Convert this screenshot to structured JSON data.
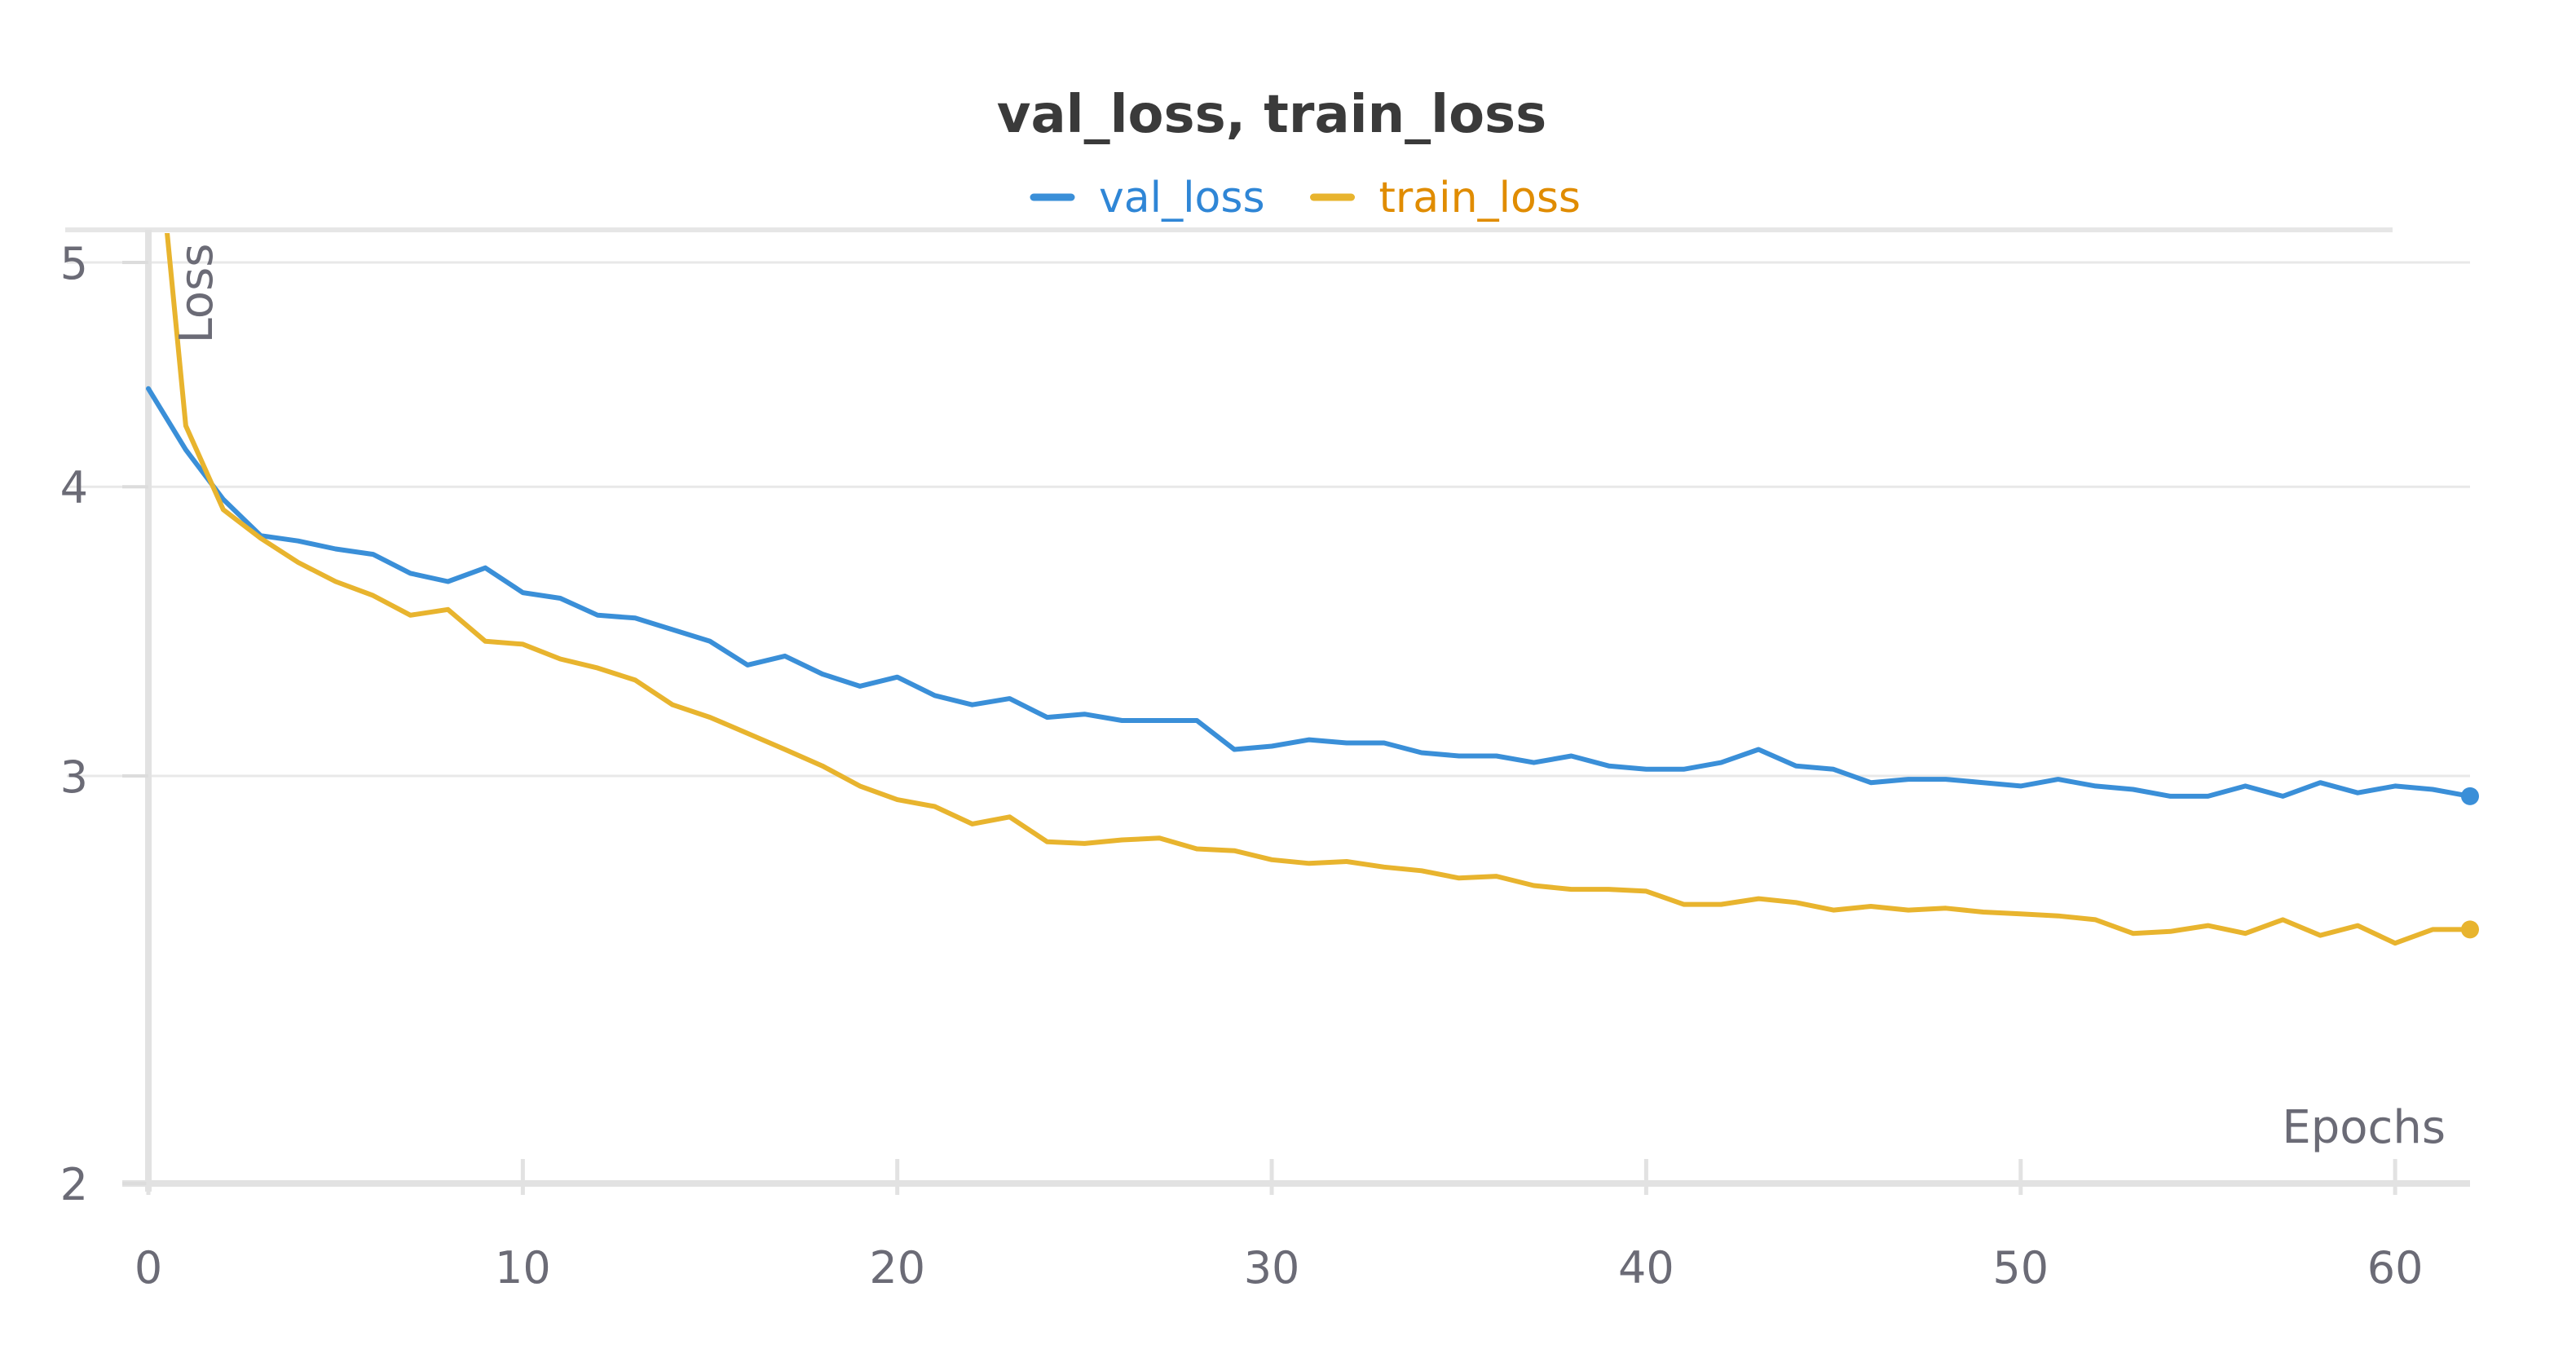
{
  "chart_data": {
    "type": "line",
    "title": "val_loss, train_loss",
    "xlabel": "Epochs",
    "ylabel": "Loss",
    "xlim": [
      0,
      62
    ],
    "ylim": [
      2,
      5
    ],
    "yscale": "log",
    "xticks": [
      0,
      10,
      20,
      30,
      40,
      50,
      60
    ],
    "yticks": [
      2,
      3,
      4,
      5
    ],
    "grid": true,
    "legend_position": "top-center",
    "series": [
      {
        "name": "val_loss",
        "color": "#3a8fd8",
        "x": [
          0,
          1,
          2,
          3,
          4,
          5,
          6,
          7,
          8,
          9,
          10,
          11,
          12,
          13,
          14,
          15,
          16,
          17,
          18,
          19,
          20,
          21,
          22,
          23,
          24,
          25,
          26,
          27,
          28,
          29,
          30,
          31,
          32,
          33,
          34,
          35,
          36,
          37,
          38,
          39,
          40,
          41,
          42,
          43,
          44,
          45,
          46,
          47,
          48,
          49,
          50,
          51,
          52,
          53,
          54,
          55,
          56,
          57,
          58,
          59,
          60,
          61,
          62
        ],
        "values": [
          4.41,
          4.15,
          3.95,
          3.81,
          3.79,
          3.76,
          3.74,
          3.67,
          3.64,
          3.69,
          3.6,
          3.58,
          3.52,
          3.51,
          3.47,
          3.43,
          3.35,
          3.38,
          3.32,
          3.28,
          3.31,
          3.25,
          3.22,
          3.24,
          3.18,
          3.19,
          3.17,
          3.17,
          3.17,
          3.08,
          3.09,
          3.11,
          3.1,
          3.1,
          3.07,
          3.06,
          3.06,
          3.04,
          3.06,
          3.03,
          3.02,
          3.02,
          3.04,
          3.08,
          3.03,
          3.02,
          2.98,
          2.99,
          2.99,
          2.98,
          2.97,
          2.99,
          2.97,
          2.96,
          2.94,
          2.94,
          2.97,
          2.94,
          2.98,
          2.95,
          2.97,
          2.96,
          2.94
        ]
      },
      {
        "name": "train_loss",
        "color": "#e8b42e",
        "x": [
          0.5,
          1,
          2,
          3,
          4,
          5,
          6,
          7,
          8,
          9,
          10,
          11,
          12,
          13,
          14,
          15,
          16,
          17,
          18,
          19,
          20,
          21,
          22,
          23,
          24,
          25,
          26,
          27,
          28,
          29,
          30,
          31,
          32,
          33,
          34,
          35,
          36,
          37,
          38,
          39,
          40,
          41,
          42,
          43,
          44,
          45,
          46,
          47,
          48,
          49,
          50,
          51,
          52,
          53,
          54,
          55,
          56,
          57,
          58,
          59,
          60,
          61,
          62
        ],
        "values": [
          5.15,
          4.25,
          3.91,
          3.8,
          3.71,
          3.64,
          3.59,
          3.52,
          3.54,
          3.43,
          3.42,
          3.37,
          3.34,
          3.3,
          3.22,
          3.18,
          3.13,
          3.08,
          3.03,
          2.97,
          2.93,
          2.91,
          2.86,
          2.88,
          2.81,
          2.805,
          2.815,
          2.82,
          2.79,
          2.785,
          2.76,
          2.75,
          2.755,
          2.74,
          2.73,
          2.71,
          2.715,
          2.69,
          2.68,
          2.68,
          2.675,
          2.64,
          2.64,
          2.655,
          2.645,
          2.625,
          2.635,
          2.625,
          2.63,
          2.62,
          2.615,
          2.61,
          2.6,
          2.565,
          2.57,
          2.585,
          2.565,
          2.6,
          2.56,
          2.585,
          2.54,
          2.575,
          2.575
        ]
      }
    ]
  }
}
